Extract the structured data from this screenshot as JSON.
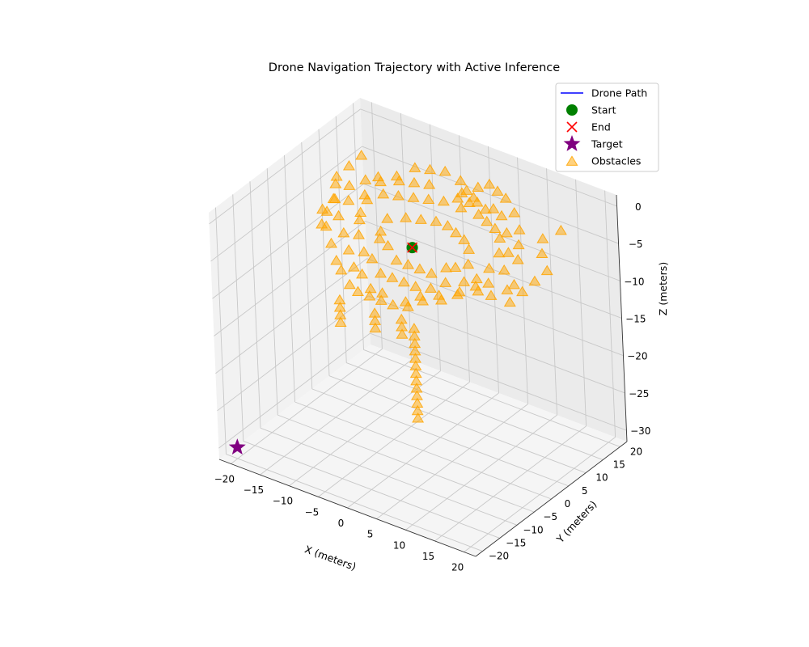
{
  "chart_data": {
    "type": "scatter3d",
    "title": "Drone Navigation Trajectory with Active Inference",
    "xlabel": "X (meters)",
    "ylabel": "Y (meters)",
    "zlabel": "Z (meters)",
    "xticks": [
      -20,
      -15,
      -10,
      -5,
      0,
      5,
      10,
      15,
      20
    ],
    "yticks": [
      -20,
      -15,
      -10,
      -5,
      0,
      5,
      10,
      15,
      20
    ],
    "zticks": [
      0,
      -5,
      -10,
      -15,
      -20,
      -25,
      -30
    ],
    "xlim": [
      -22,
      22
    ],
    "ylim": [
      -22,
      22
    ],
    "zlim": [
      -31.5,
      1.5
    ],
    "grid": true,
    "legend_position": "top-right",
    "legend": [
      {
        "label": "Drone Path",
        "marker": "line",
        "color": "#0000ff"
      },
      {
        "label": "Start",
        "marker": "circle",
        "color": "#008000"
      },
      {
        "label": "End",
        "marker": "x",
        "color": "#ff0000"
      },
      {
        "label": "Target",
        "marker": "star",
        "color": "#800080"
      },
      {
        "label": "Obstacles",
        "marker": "triangle",
        "color": "#ffa500"
      }
    ],
    "series": [
      {
        "name": "Drone Path",
        "points": [
          [
            -1,
            1,
            -5
          ],
          [
            -1,
            1,
            -5
          ]
        ]
      },
      {
        "name": "Start",
        "points": [
          [
            -1,
            1,
            -5
          ]
        ]
      },
      {
        "name": "End",
        "points": [
          [
            -1,
            1,
            -5
          ]
        ]
      },
      {
        "name": "Target",
        "points": [
          [
            -20,
            -20,
            -30
          ]
        ]
      },
      {
        "name": "Obstacles",
        "points": [
          [
            -12,
            10,
            -2
          ],
          [
            -10,
            12,
            -2
          ],
          [
            -8,
            14,
            -1
          ],
          [
            -6,
            15,
            -1
          ],
          [
            -4,
            16,
            -1
          ],
          [
            -2,
            17,
            -2
          ],
          [
            -1,
            17,
            -3
          ],
          [
            1,
            17,
            -2
          ],
          [
            3,
            17,
            -1
          ],
          [
            5,
            16,
            -1
          ],
          [
            7,
            15,
            -1
          ],
          [
            9,
            14,
            -2
          ],
          [
            11,
            12,
            -3
          ],
          [
            12,
            10,
            -4
          ],
          [
            13,
            8,
            -5
          ],
          [
            14,
            5,
            -7
          ],
          [
            14,
            3,
            -7
          ],
          [
            13,
            0,
            -7
          ],
          [
            12,
            -2,
            -6
          ],
          [
            10,
            -4,
            -6
          ],
          [
            8,
            -6,
            -7
          ],
          [
            6,
            -8,
            -7
          ],
          [
            4,
            -9,
            -8
          ],
          [
            2,
            -10,
            -8
          ],
          [
            0,
            -10,
            -8
          ],
          [
            -2,
            -10,
            -8
          ],
          [
            -4,
            -10,
            -8
          ],
          [
            -6,
            -9,
            -8
          ],
          [
            -8,
            -8,
            -7
          ],
          [
            -10,
            -6,
            -7
          ],
          [
            -12,
            -4,
            -6
          ],
          [
            -14,
            -2,
            -5
          ],
          [
            -15,
            0,
            -4
          ],
          [
            -15,
            2,
            -3
          ],
          [
            -14,
            5,
            -2
          ],
          [
            -13,
            8,
            -2
          ],
          [
            -10,
            8,
            -3
          ],
          [
            -8,
            9,
            -3
          ],
          [
            -6,
            10,
            -3
          ],
          [
            -4,
            11,
            -3
          ],
          [
            -2,
            12,
            -3
          ],
          [
            1,
            12,
            -3
          ],
          [
            4,
            12,
            -3
          ],
          [
            6,
            11,
            -3
          ],
          [
            8,
            10,
            -3
          ],
          [
            10,
            8,
            -3
          ],
          [
            11,
            6,
            -4
          ],
          [
            11,
            3,
            -5
          ],
          [
            10,
            1,
            -6
          ],
          [
            9,
            -1,
            -6
          ],
          [
            7,
            -3,
            -6
          ],
          [
            5,
            -4,
            -7
          ],
          [
            3,
            -5,
            -7
          ],
          [
            1,
            -5,
            -7
          ],
          [
            -1,
            -5,
            -7
          ],
          [
            -3,
            -5,
            -7
          ],
          [
            -5,
            -4,
            -6
          ],
          [
            -7,
            -3,
            -6
          ],
          [
            -9,
            -1,
            -5
          ],
          [
            -10,
            1,
            -4
          ],
          [
            -11,
            3,
            -4
          ],
          [
            -11,
            5,
            -3
          ],
          [
            -7,
            4,
            -4
          ],
          [
            -5,
            6,
            -4
          ],
          [
            -3,
            7,
            -4
          ],
          [
            -1,
            8,
            -4
          ],
          [
            1,
            8,
            -4
          ],
          [
            3,
            7,
            -4
          ],
          [
            5,
            6,
            -4
          ],
          [
            7,
            4,
            -4
          ],
          [
            8,
            2,
            -5
          ],
          [
            7,
            0,
            -5
          ],
          [
            6,
            -1,
            -5
          ],
          [
            4,
            -2,
            -6
          ],
          [
            2,
            -2,
            -6
          ],
          [
            0,
            -2,
            -6
          ],
          [
            -2,
            -2,
            -6
          ],
          [
            -4,
            -1,
            -5
          ],
          [
            -6,
            0,
            -5
          ],
          [
            -7,
            2,
            -5
          ],
          [
            -9,
            11,
            -2
          ],
          [
            -7,
            12,
            -2
          ],
          [
            -5,
            13,
            -2
          ],
          [
            0,
            14,
            -2
          ],
          [
            2,
            14,
            -2
          ],
          [
            6,
            13,
            -2
          ],
          [
            8,
            12,
            -2
          ],
          [
            10,
            10,
            -3
          ],
          [
            12,
            7,
            -4
          ],
          [
            13,
            4,
            -5
          ],
          [
            12,
            1,
            -6
          ],
          [
            11,
            -1,
            -6
          ],
          [
            9,
            -3,
            -7
          ],
          [
            7,
            -5,
            -7
          ],
          [
            5,
            -7,
            -7
          ],
          [
            3,
            -8,
            -8
          ],
          [
            -1,
            -8,
            -8
          ],
          [
            -3,
            -8,
            -8
          ],
          [
            -5,
            -7,
            -7
          ],
          [
            -7,
            -6,
            -7
          ],
          [
            -9,
            -4,
            -6
          ],
          [
            -11,
            -2,
            -5
          ],
          [
            -13,
            0,
            -4
          ],
          [
            -13,
            3,
            -3
          ],
          [
            -12,
            6,
            -3
          ],
          [
            -11,
            9,
            -2
          ],
          [
            15,
            12,
            -3
          ],
          [
            17,
            14,
            -2
          ],
          [
            16,
            10,
            -4
          ],
          [
            18,
            8,
            -5
          ],
          [
            17,
            6,
            -6
          ],
          [
            16,
            4,
            -7
          ],
          [
            15,
            2,
            -8
          ],
          [
            -16,
            12,
            -1
          ],
          [
            -17,
            10,
            -2
          ],
          [
            -18,
            8,
            -3
          ],
          [
            -17,
            6,
            -3
          ],
          [
            -16,
            4,
            -4
          ],
          [
            -17,
            2,
            -5
          ],
          [
            -16,
            0,
            -6
          ],
          [
            -2,
            16,
            -4
          ],
          [
            0,
            16,
            -4
          ],
          [
            2,
            15,
            -3
          ],
          [
            4,
            14,
            -3
          ],
          [
            -6,
            -12,
            -9
          ],
          [
            -6,
            -12,
            -10
          ],
          [
            -6,
            -12,
            -11
          ],
          [
            -6,
            -12,
            -12
          ],
          [
            0,
            -12,
            -9
          ],
          [
            0,
            -12,
            -10
          ],
          [
            0,
            -12,
            -11
          ],
          [
            4,
            -11,
            -9
          ],
          [
            4,
            -11,
            -10
          ],
          [
            4,
            -11,
            -11
          ],
          [
            8,
            -14,
            -8
          ],
          [
            8,
            -14,
            -9
          ],
          [
            8,
            -14,
            -10
          ],
          [
            8,
            -14,
            -11
          ],
          [
            8,
            -14,
            -12
          ],
          [
            8,
            -14,
            -13
          ],
          [
            8,
            -14,
            -14
          ],
          [
            8,
            -14,
            -15
          ],
          [
            8,
            -14,
            -16
          ],
          [
            8,
            -14,
            -17
          ],
          [
            8,
            -14,
            -18
          ],
          [
            8,
            -14,
            -19
          ],
          [
            8,
            -14,
            -20
          ]
        ]
      }
    ]
  }
}
